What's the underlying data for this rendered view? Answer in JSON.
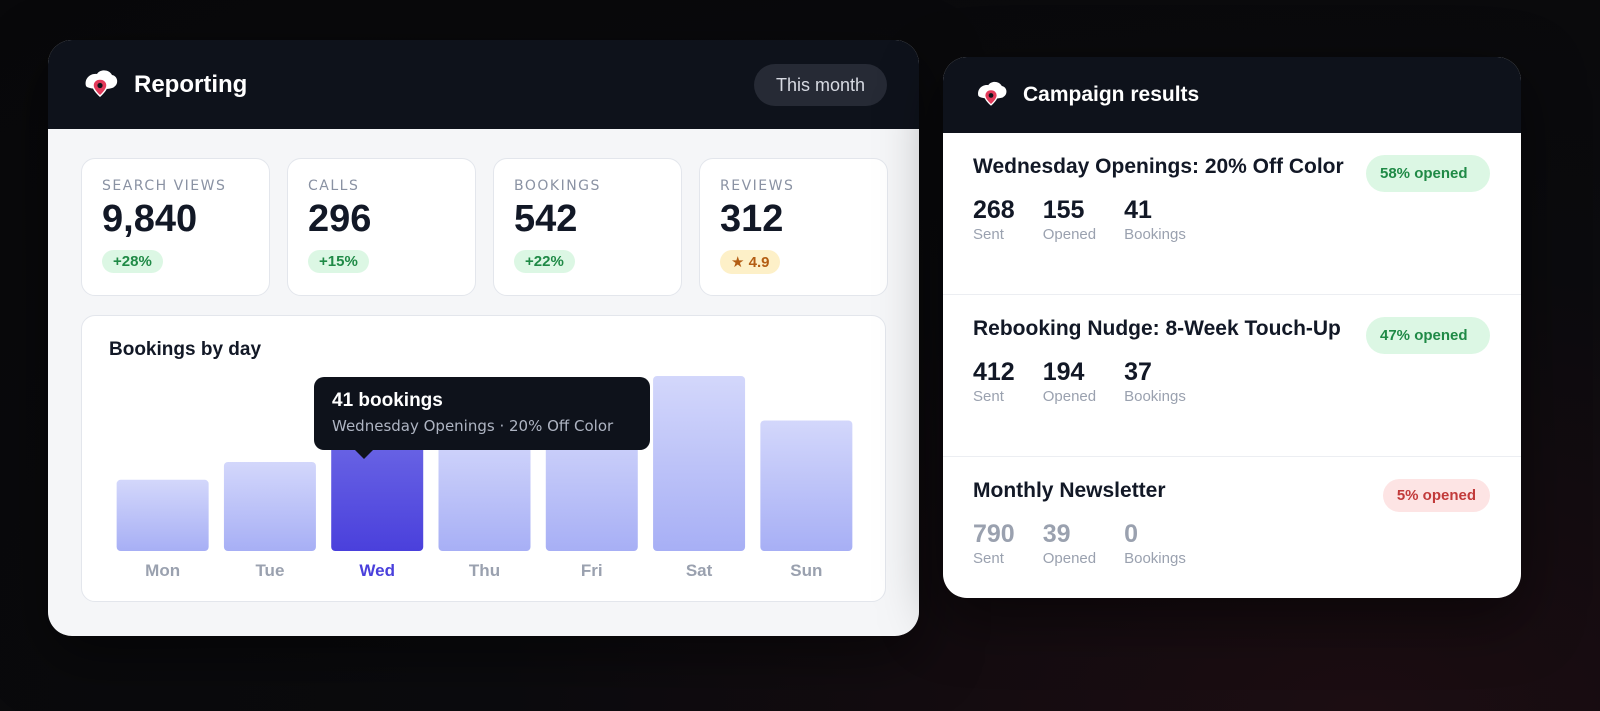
{
  "reporting": {
    "title": "Reporting",
    "period_label": "This month",
    "stats": [
      {
        "label": "SEARCH VIEWS",
        "value": "9,840",
        "badge": "+28%",
        "badge_type": "green"
      },
      {
        "label": "CALLS",
        "value": "296",
        "badge": "+15%",
        "badge_type": "green"
      },
      {
        "label": "BOOKINGS",
        "value": "542",
        "badge": "+22%",
        "badge_type": "green"
      },
      {
        "label": "REVIEWS",
        "value": "312",
        "badge": "★ 4.9",
        "badge_type": "amber"
      }
    ]
  },
  "chart_data": {
    "type": "bar",
    "title": "Bookings by day",
    "categories": [
      "Mon",
      "Tue",
      "Wed",
      "Thu",
      "Fri",
      "Sat",
      "Sun"
    ],
    "values": [
      24,
      30,
      44,
      40,
      45,
      59,
      44
    ],
    "highlighted": "Wed",
    "ylim": [
      0,
      60
    ],
    "grid": false,
    "tooltip": {
      "title": "41 bookings",
      "subtitle": "Wednesday Openings · 20% Off Color"
    },
    "colors": {
      "bar": "#b8bff7",
      "highlight": "#4a44dc"
    }
  },
  "campaign": {
    "title": "Campaign results",
    "rows": [
      {
        "name": "Wednesday Openings: 20% Off Color",
        "badge": "58% opened",
        "badge_type": "good",
        "sent": "268",
        "opened": "155",
        "bookings": "41"
      },
      {
        "name": "Rebooking Nudge: 8-Week Touch-Up",
        "badge": "47% opened",
        "badge_type": "good",
        "sent": "412",
        "opened": "194",
        "bookings": "37"
      },
      {
        "name": "Monthly Newsletter",
        "badge": "5% opened",
        "badge_type": "bad",
        "sent": "790",
        "opened": "39",
        "bookings": "0"
      }
    ],
    "labels": {
      "sent": "Sent",
      "opened": "Opened",
      "bookings": "Bookings"
    }
  },
  "icons": {
    "logo": "map-pin-cloud-icon"
  },
  "colors": {
    "accent": "#4a44dc",
    "pin": "#e23a5a",
    "positive": "#1f8a46",
    "negative": "#c23a3a"
  }
}
